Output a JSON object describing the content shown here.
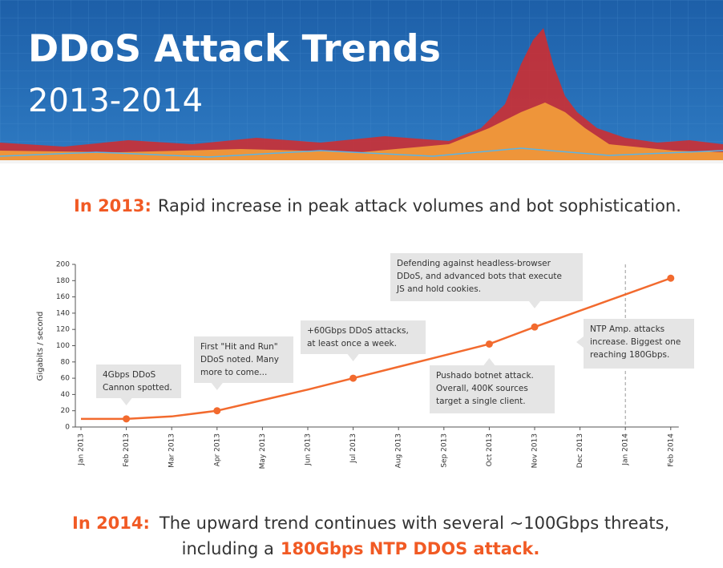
{
  "header": {
    "title": "DDoS Attack Trends",
    "subtitle": "2013-2014"
  },
  "intro": {
    "label": "In 2013:",
    "text": "Rapid increase in peak attack volumes and bot sophistication."
  },
  "chart_data": {
    "type": "line",
    "y_label": "Gigabits / second",
    "categories": [
      "Jan 2013",
      "Feb 2013",
      "Mar 2013",
      "Apr 2013",
      "May 2013",
      "Jun 2013",
      "Jul 2013",
      "Aug 2013",
      "Sep 2013",
      "Oct 2013",
      "Nov 2013",
      "Dec 2013",
      "Jan 2014",
      "Feb 2014"
    ],
    "values": [
      10,
      10,
      13,
      20,
      33,
      46,
      60,
      74,
      88,
      102,
      123,
      143,
      163,
      183
    ],
    "color": "#f26a2e",
    "ylim": [
      0,
      200
    ],
    "yticks": [
      0,
      20,
      40,
      60,
      80,
      100,
      120,
      140,
      160,
      180,
      200
    ],
    "grid": false,
    "divider": "Jan 2014",
    "annotations": [
      {
        "category": "Feb 2013",
        "lines": [
          "4Gbps DDoS",
          "Cannon spotted."
        ]
      },
      {
        "category": "Apr 2013",
        "lines": [
          "First \"Hit and Run\"",
          "DDoS noted.  Many",
          "more to come..."
        ]
      },
      {
        "category": "Jul 2013",
        "lines": [
          "+60Gbps DDoS attacks,",
          "at least once a week."
        ]
      },
      {
        "category": "Oct 2013",
        "lines": [
          "Pushado botnet attack.",
          "Overall, 400K sources",
          "target a single client."
        ]
      },
      {
        "category": "Nov 2013",
        "lines": [
          "Defending against headless-browser",
          "DDoS, and advanced bots that execute",
          "JS and hold cookies."
        ]
      },
      {
        "category": "Feb 2014",
        "lines": [
          "NTP Amp. attacks",
          "increase. Biggest one",
          "reaching 180Gbps."
        ]
      }
    ]
  },
  "footer": {
    "label": "In 2014:",
    "text": "The upward trend continues with several ~100Gbps threats,",
    "text2": "including a",
    "highlight": "180Gbps NTP DDOS attack."
  }
}
